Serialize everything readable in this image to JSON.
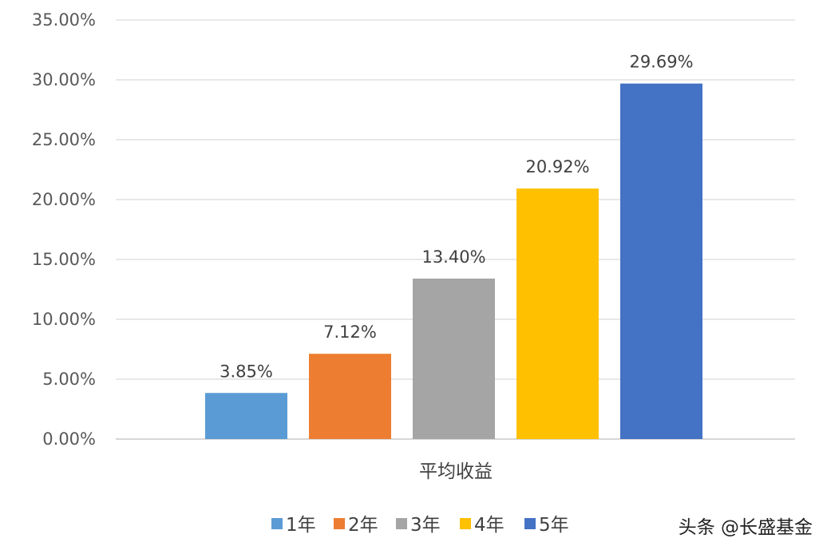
{
  "chart_data": {
    "type": "bar",
    "title": "",
    "xlabel": "",
    "ylabel": "",
    "categories": [
      "平均收益"
    ],
    "series": [
      {
        "name": "1年",
        "values": [
          3.85
        ],
        "label": "3.85%",
        "color": "#5B9BD5"
      },
      {
        "name": "2年",
        "values": [
          7.12
        ],
        "label": "7.12%",
        "color": "#ED7D31"
      },
      {
        "name": "3年",
        "values": [
          13.4
        ],
        "label": "13.40%",
        "color": "#A5A5A5"
      },
      {
        "name": "4年",
        "values": [
          20.92
        ],
        "label": "20.92%",
        "color": "#FFC000"
      },
      {
        "name": "5年",
        "values": [
          29.69
        ],
        "label": "29.69%",
        "color": "#4472C4"
      }
    ],
    "ylim": [
      0,
      35
    ],
    "yticks": [
      {
        "value": 0,
        "label": "0.00%"
      },
      {
        "value": 5,
        "label": "5.00%"
      },
      {
        "value": 10,
        "label": "10.00%"
      },
      {
        "value": 15,
        "label": "15.00%"
      },
      {
        "value": 20,
        "label": "20.00%"
      },
      {
        "value": 25,
        "label": "25.00%"
      },
      {
        "value": 30,
        "label": "30.00%"
      },
      {
        "value": 35,
        "label": "35.00%"
      }
    ],
    "grid": true,
    "legend_position": "bottom"
  },
  "watermark": "头条 @长盛基金"
}
